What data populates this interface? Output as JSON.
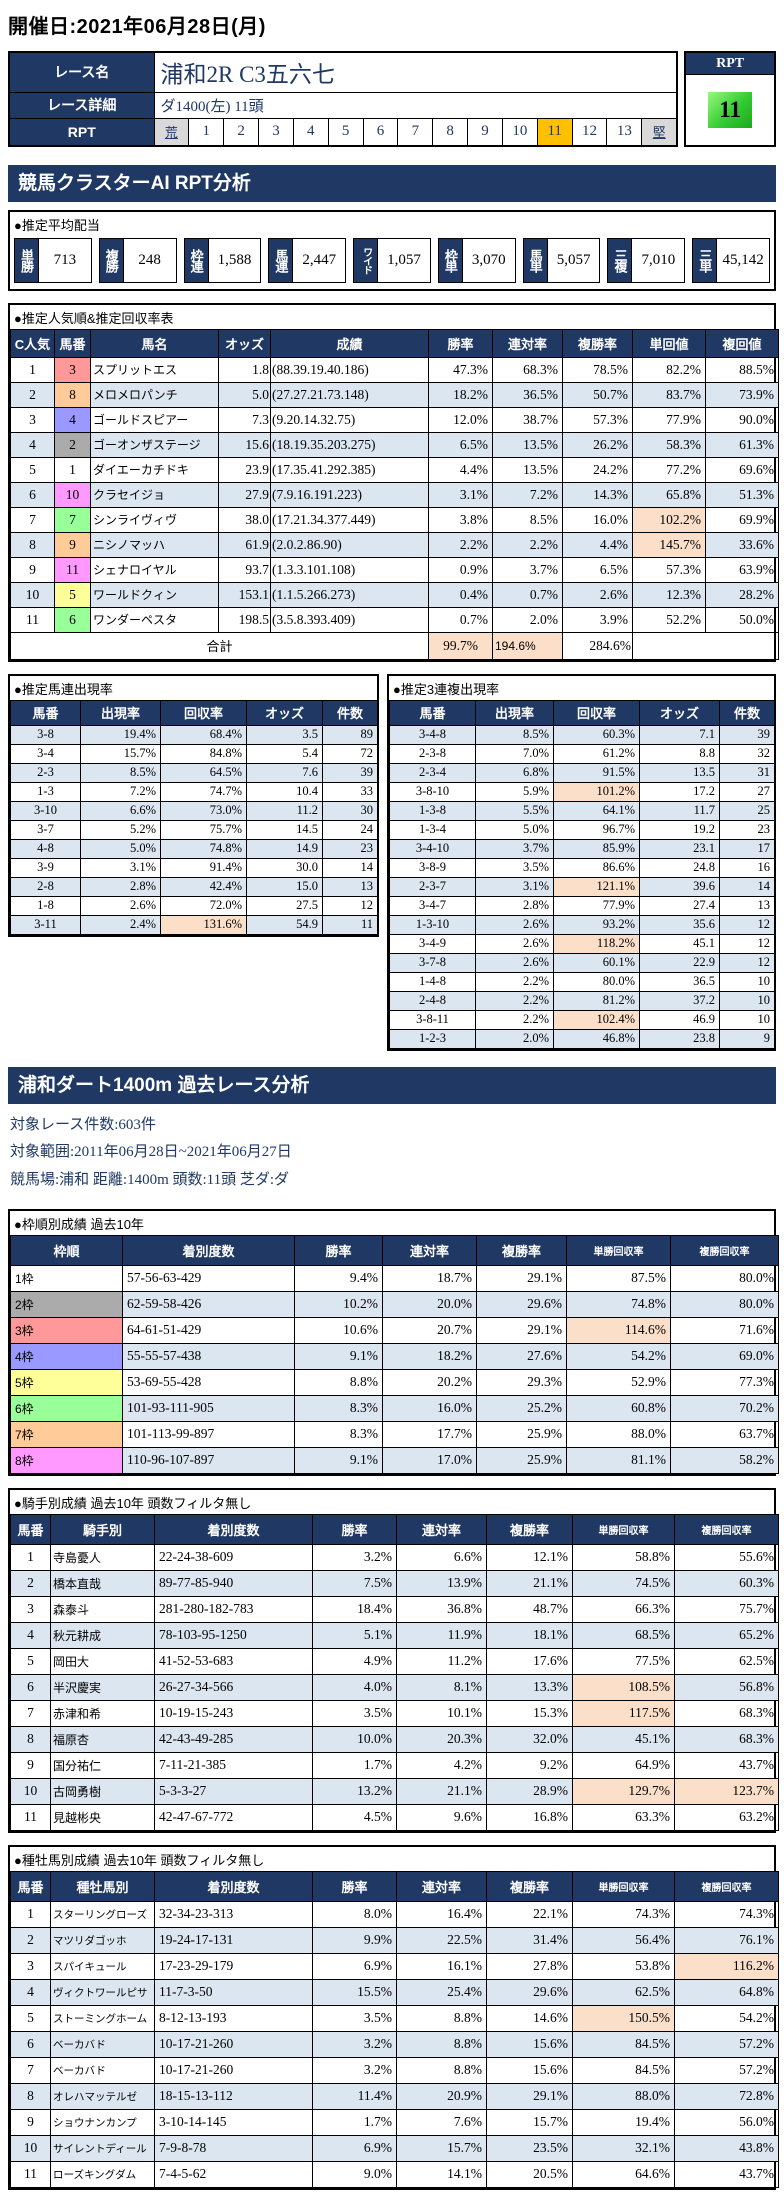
{
  "page": {
    "date_label": "開催日:2021年06月28日(月)"
  },
  "colors": {
    "navy": "#1f3864",
    "stripe": "#dce6f1",
    "highlight": "#fbdfc9",
    "rpt_selected": "#ffc000",
    "rpt_score_green": "#33cc33",
    "scale_end_gray": "#d9d9d9",
    "frame_colors": [
      "#ffffff",
      "#ababab",
      "#ff9999",
      "#9999ff",
      "#ffff99",
      "#99ff99",
      "#ffcc99",
      "#ff99ff"
    ]
  },
  "race": {
    "name_label": "レース名",
    "name": "浦和2R C3五六七",
    "detail_label": "レース詳細",
    "detail": "ダ1400(左)  11頭",
    "rpt_label": "RPT",
    "rpt_scale": [
      "荒",
      "1",
      "2",
      "3",
      "4",
      "5",
      "6",
      "7",
      "8",
      "9",
      "10",
      "11",
      "12",
      "13",
      "堅"
    ],
    "rpt_selected": "11",
    "rpt_box_label": "RPT",
    "rpt_box_value": "11"
  },
  "section1": {
    "title": "競馬クラスターAI RPT分析",
    "payout": {
      "title": "●推定平均配当",
      "items": [
        {
          "label": "単勝",
          "value": "713"
        },
        {
          "label": "複勝",
          "value": "248"
        },
        {
          "label": "枠連",
          "value": "1,588"
        },
        {
          "label": "馬連",
          "value": "2,447"
        },
        {
          "label": "ワイド",
          "value": "1,057"
        },
        {
          "label": "枠単",
          "value": "3,070"
        },
        {
          "label": "馬単",
          "value": "5,057"
        },
        {
          "label": "三複",
          "value": "7,010"
        },
        {
          "label": "三単",
          "value": "45,142"
        }
      ]
    },
    "popularity": {
      "title": "●推定人気順&推定回収率表",
      "headers": [
        "C人気",
        "馬番",
        "馬名",
        "オッズ",
        "成績",
        "勝率",
        "連対率",
        "複勝率",
        "単回値",
        "複回値"
      ],
      "rows": [
        {
          "c": [
            "1",
            "3",
            "スプリットエス",
            "1.8",
            "(88.39.19.40.186)",
            "47.3%",
            "68.3%",
            "78.5%",
            "82.2%",
            "88.5%"
          ],
          "f": 3,
          "hl": []
        },
        {
          "c": [
            "2",
            "8",
            "メロメロパンチ",
            "5.0",
            "(27.27.21.73.148)",
            "18.2%",
            "36.5%",
            "50.7%",
            "83.7%",
            "73.9%"
          ],
          "f": 7,
          "hl": []
        },
        {
          "c": [
            "3",
            "4",
            "ゴールドスピアー",
            "7.3",
            "(9.20.14.32.75)",
            "12.0%",
            "38.7%",
            "57.3%",
            "77.9%",
            "90.0%"
          ],
          "f": 4,
          "hl": []
        },
        {
          "c": [
            "4",
            "2",
            "ゴーオンザステージ",
            "15.6",
            "(18.19.35.203.275)",
            "6.5%",
            "13.5%",
            "26.2%",
            "58.3%",
            "61.3%"
          ],
          "f": 2,
          "hl": []
        },
        {
          "c": [
            "5",
            "1",
            "ダイエーカチドキ",
            "23.9",
            "(17.35.41.292.385)",
            "4.4%",
            "13.5%",
            "24.2%",
            "77.2%",
            "69.6%"
          ],
          "f": 1,
          "hl": []
        },
        {
          "c": [
            "6",
            "10",
            "クラセイジョ",
            "27.9",
            "(7.9.16.191.223)",
            "3.1%",
            "7.2%",
            "14.3%",
            "65.8%",
            "51.3%"
          ],
          "f": 8,
          "hl": []
        },
        {
          "c": [
            "7",
            "7",
            "シンライヴィヴ",
            "38.0",
            "(17.21.34.377.449)",
            "3.8%",
            "8.5%",
            "16.0%",
            "102.2%",
            "69.9%"
          ],
          "f": 6,
          "hl": [
            8
          ]
        },
        {
          "c": [
            "8",
            "9",
            "ニシノマッハ",
            "61.9",
            "(2.0.2.86.90)",
            "2.2%",
            "2.2%",
            "4.4%",
            "145.7%",
            "33.6%"
          ],
          "f": 7,
          "hl": [
            8
          ]
        },
        {
          "c": [
            "9",
            "11",
            "シェナロイヤル",
            "93.7",
            "(1.3.3.101.108)",
            "0.9%",
            "3.7%",
            "6.5%",
            "57.3%",
            "63.9%"
          ],
          "f": 8,
          "hl": []
        },
        {
          "c": [
            "10",
            "5",
            "ワールドクィン",
            "153.1",
            "(1.1.5.266.273)",
            "0.4%",
            "0.7%",
            "2.6%",
            "12.3%",
            "28.2%"
          ],
          "f": 5,
          "hl": []
        },
        {
          "c": [
            "11",
            "6",
            "ワンダーペスタ",
            "198.5",
            "(3.5.8.393.409)",
            "0.7%",
            "2.0%",
            "3.9%",
            "52.2%",
            "50.0%"
          ],
          "f": 6,
          "hl": []
        }
      ],
      "total_label": "合計",
      "total": {
        "win": "99.7%",
        "quinella": "194.6%",
        "show": "284.6%"
      }
    },
    "umaren": {
      "title": "●推定馬連出現率",
      "headers": [
        "馬番",
        "出現率",
        "回収率",
        "オッズ",
        "件数"
      ],
      "rows": [
        {
          "c": [
            "3-8",
            "19.4%",
            "68.4%",
            "3.5",
            "89"
          ],
          "hl": []
        },
        {
          "c": [
            "3-4",
            "15.7%",
            "84.8%",
            "5.4",
            "72"
          ],
          "hl": []
        },
        {
          "c": [
            "2-3",
            "8.5%",
            "64.5%",
            "7.6",
            "39"
          ],
          "hl": []
        },
        {
          "c": [
            "1-3",
            "7.2%",
            "74.7%",
            "10.4",
            "33"
          ],
          "hl": []
        },
        {
          "c": [
            "3-10",
            "6.6%",
            "73.0%",
            "11.2",
            "30"
          ],
          "hl": []
        },
        {
          "c": [
            "3-7",
            "5.2%",
            "75.7%",
            "14.5",
            "24"
          ],
          "hl": []
        },
        {
          "c": [
            "4-8",
            "5.0%",
            "74.8%",
            "14.9",
            "23"
          ],
          "hl": []
        },
        {
          "c": [
            "3-9",
            "3.1%",
            "91.4%",
            "30.0",
            "14"
          ],
          "hl": []
        },
        {
          "c": [
            "2-8",
            "2.8%",
            "42.4%",
            "15.0",
            "13"
          ],
          "hl": []
        },
        {
          "c": [
            "1-8",
            "2.6%",
            "72.0%",
            "27.5",
            "12"
          ],
          "hl": []
        },
        {
          "c": [
            "3-11",
            "2.4%",
            "131.6%",
            "54.9",
            "11"
          ],
          "hl": [
            2
          ]
        }
      ]
    },
    "sanrenpuku": {
      "title": "●推定3連複出現率",
      "headers": [
        "馬番",
        "出現率",
        "回収率",
        "オッズ",
        "件数"
      ],
      "rows": [
        {
          "c": [
            "3-4-8",
            "8.5%",
            "60.3%",
            "7.1",
            "39"
          ],
          "hl": []
        },
        {
          "c": [
            "2-3-8",
            "7.0%",
            "61.2%",
            "8.8",
            "32"
          ],
          "hl": []
        },
        {
          "c": [
            "2-3-4",
            "6.8%",
            "91.5%",
            "13.5",
            "31"
          ],
          "hl": []
        },
        {
          "c": [
            "3-8-10",
            "5.9%",
            "101.2%",
            "17.2",
            "27"
          ],
          "hl": [
            2
          ]
        },
        {
          "c": [
            "1-3-8",
            "5.5%",
            "64.1%",
            "11.7",
            "25"
          ],
          "hl": []
        },
        {
          "c": [
            "1-3-4",
            "5.0%",
            "96.7%",
            "19.2",
            "23"
          ],
          "hl": []
        },
        {
          "c": [
            "3-4-10",
            "3.7%",
            "85.9%",
            "23.1",
            "17"
          ],
          "hl": []
        },
        {
          "c": [
            "3-8-9",
            "3.5%",
            "86.6%",
            "24.8",
            "16"
          ],
          "hl": []
        },
        {
          "c": [
            "2-3-7",
            "3.1%",
            "121.1%",
            "39.6",
            "14"
          ],
          "hl": [
            2
          ]
        },
        {
          "c": [
            "3-4-7",
            "2.8%",
            "77.9%",
            "27.4",
            "13"
          ],
          "hl": []
        },
        {
          "c": [
            "1-3-10",
            "2.6%",
            "93.2%",
            "35.6",
            "12"
          ],
          "hl": []
        },
        {
          "c": [
            "3-4-9",
            "2.6%",
            "118.2%",
            "45.1",
            "12"
          ],
          "hl": [
            2
          ]
        },
        {
          "c": [
            "3-7-8",
            "2.6%",
            "60.1%",
            "22.9",
            "12"
          ],
          "hl": []
        },
        {
          "c": [
            "1-4-8",
            "2.2%",
            "80.0%",
            "36.5",
            "10"
          ],
          "hl": []
        },
        {
          "c": [
            "2-4-8",
            "2.2%",
            "81.2%",
            "37.2",
            "10"
          ],
          "hl": []
        },
        {
          "c": [
            "3-8-11",
            "2.2%",
            "102.4%",
            "46.9",
            "10"
          ],
          "hl": [
            2
          ]
        },
        {
          "c": [
            "1-2-3",
            "2.0%",
            "46.8%",
            "23.8",
            "9"
          ],
          "hl": []
        }
      ]
    }
  },
  "section2": {
    "title": "浦和ダート1400m 過去レース分析",
    "info_lines": [
      "対象レース件数:603件",
      "対象範囲:2011年06月28日~2021年06月27日",
      "競馬場:浦和 距離:1400m 頭数:11頭 芝ダ:ダ"
    ],
    "frame": {
      "title": "●枠順別成績 過去10年",
      "headers": [
        "枠順",
        "着別度数",
        "勝率",
        "連対率",
        "複勝率",
        "単勝回収率",
        "複勝回収率"
      ],
      "rows": [
        {
          "c": [
            "1枠",
            "57-56-63-429",
            "9.4%",
            "18.7%",
            "29.1%",
            "87.5%",
            "80.0%"
          ],
          "f": 1,
          "hl": []
        },
        {
          "c": [
            "2枠",
            "62-59-58-426",
            "10.2%",
            "20.0%",
            "29.6%",
            "74.8%",
            "80.0%"
          ],
          "f": 2,
          "hl": []
        },
        {
          "c": [
            "3枠",
            "64-61-51-429",
            "10.6%",
            "20.7%",
            "29.1%",
            "114.6%",
            "71.6%"
          ],
          "f": 3,
          "hl": [
            5
          ]
        },
        {
          "c": [
            "4枠",
            "55-55-57-438",
            "9.1%",
            "18.2%",
            "27.6%",
            "54.2%",
            "69.0%"
          ],
          "f": 4,
          "hl": []
        },
        {
          "c": [
            "5枠",
            "53-69-55-428",
            "8.8%",
            "20.2%",
            "29.3%",
            "52.9%",
            "77.3%"
          ],
          "f": 5,
          "hl": []
        },
        {
          "c": [
            "6枠",
            "101-93-111-905",
            "8.3%",
            "16.0%",
            "25.2%",
            "60.8%",
            "70.2%"
          ],
          "f": 6,
          "hl": []
        },
        {
          "c": [
            "7枠",
            "101-113-99-897",
            "8.3%",
            "17.7%",
            "25.9%",
            "88.0%",
            "63.7%"
          ],
          "f": 7,
          "hl": []
        },
        {
          "c": [
            "8枠",
            "110-96-107-897",
            "9.1%",
            "17.0%",
            "25.9%",
            "81.1%",
            "58.2%"
          ],
          "f": 8,
          "hl": []
        }
      ]
    },
    "jockey": {
      "title": "●騎手別成績 過去10年 頭数フィルタ無し",
      "headers": [
        "馬番",
        "騎手別",
        "着別度数",
        "勝率",
        "連対率",
        "複勝率",
        "単勝回収率",
        "複勝回収率"
      ],
      "rows": [
        {
          "c": [
            "1",
            "寺島憂人",
            "22-24-38-609",
            "3.2%",
            "6.6%",
            "12.1%",
            "58.8%",
            "55.6%"
          ],
          "hl": []
        },
        {
          "c": [
            "2",
            "橋本直哉",
            "89-77-85-940",
            "7.5%",
            "13.9%",
            "21.1%",
            "74.5%",
            "60.3%"
          ],
          "hl": []
        },
        {
          "c": [
            "3",
            "森泰斗",
            "281-280-182-783",
            "18.4%",
            "36.8%",
            "48.7%",
            "66.3%",
            "75.7%"
          ],
          "hl": []
        },
        {
          "c": [
            "4",
            "秋元耕成",
            "78-103-95-1250",
            "5.1%",
            "11.9%",
            "18.1%",
            "68.5%",
            "65.2%"
          ],
          "hl": []
        },
        {
          "c": [
            "5",
            "岡田大",
            "41-52-53-683",
            "4.9%",
            "11.2%",
            "17.6%",
            "77.5%",
            "62.5%"
          ],
          "hl": []
        },
        {
          "c": [
            "6",
            "半沢慶実",
            "26-27-34-566",
            "4.0%",
            "8.1%",
            "13.3%",
            "108.5%",
            "56.8%"
          ],
          "hl": [
            6
          ]
        },
        {
          "c": [
            "7",
            "赤津和希",
            "10-19-15-243",
            "3.5%",
            "10.1%",
            "15.3%",
            "117.5%",
            "68.3%"
          ],
          "hl": [
            6
          ]
        },
        {
          "c": [
            "8",
            "福原杏",
            "42-43-49-285",
            "10.0%",
            "20.3%",
            "32.0%",
            "45.1%",
            "68.3%"
          ],
          "hl": []
        },
        {
          "c": [
            "9",
            "国分祐仁",
            "7-11-21-385",
            "1.7%",
            "4.2%",
            "9.2%",
            "64.9%",
            "43.7%"
          ],
          "hl": []
        },
        {
          "c": [
            "10",
            "古岡勇樹",
            "5-3-3-27",
            "13.2%",
            "21.1%",
            "28.9%",
            "129.7%",
            "123.7%"
          ],
          "hl": [
            6,
            7
          ]
        },
        {
          "c": [
            "11",
            "見越彬央",
            "42-47-67-772",
            "4.5%",
            "9.6%",
            "16.8%",
            "63.3%",
            "63.2%"
          ],
          "hl": []
        }
      ]
    },
    "sire": {
      "title": "●種牡馬別成績 過去10年 頭数フィルタ無し",
      "headers": [
        "馬番",
        "種牡馬別",
        "着別度数",
        "勝率",
        "連対率",
        "複勝率",
        "単勝回収率",
        "複勝回収率"
      ],
      "rows": [
        {
          "c": [
            "1",
            "スターリングローズ",
            "32-34-23-313",
            "8.0%",
            "16.4%",
            "22.1%",
            "74.3%",
            "74.3%"
          ],
          "hl": []
        },
        {
          "c": [
            "2",
            "マツリダゴッホ",
            "19-24-17-131",
            "9.9%",
            "22.5%",
            "31.4%",
            "56.4%",
            "76.1%"
          ],
          "hl": []
        },
        {
          "c": [
            "3",
            "スパイキュール",
            "17-23-29-179",
            "6.9%",
            "16.1%",
            "27.8%",
            "53.8%",
            "116.2%"
          ],
          "hl": [
            7
          ]
        },
        {
          "c": [
            "4",
            "ヴィクトワールピサ",
            "11-7-3-50",
            "15.5%",
            "25.4%",
            "29.6%",
            "62.5%",
            "64.8%"
          ],
          "hl": []
        },
        {
          "c": [
            "5",
            "ストーミングホーム",
            "8-12-13-193",
            "3.5%",
            "8.8%",
            "14.6%",
            "150.5%",
            "54.2%"
          ],
          "hl": [
            6
          ]
        },
        {
          "c": [
            "6",
            "ベーカバド",
            "10-17-21-260",
            "3.2%",
            "8.8%",
            "15.6%",
            "84.5%",
            "57.2%"
          ],
          "hl": []
        },
        {
          "c": [
            "7",
            "ベーカバド",
            "10-17-21-260",
            "3.2%",
            "8.8%",
            "15.6%",
            "84.5%",
            "57.2%"
          ],
          "hl": []
        },
        {
          "c": [
            "8",
            "オレハマッテルゼ",
            "18-15-13-112",
            "11.4%",
            "20.9%",
            "29.1%",
            "88.0%",
            "72.8%"
          ],
          "hl": []
        },
        {
          "c": [
            "9",
            "ショウナンカンプ",
            "3-10-14-145",
            "1.7%",
            "7.6%",
            "15.7%",
            "19.4%",
            "56.0%"
          ],
          "hl": []
        },
        {
          "c": [
            "10",
            "サイレントディール",
            "7-9-8-78",
            "6.9%",
            "15.7%",
            "23.5%",
            "32.1%",
            "43.8%"
          ],
          "hl": []
        },
        {
          "c": [
            "11",
            "ローズキングダム",
            "7-4-5-62",
            "9.0%",
            "14.1%",
            "20.5%",
            "64.6%",
            "43.7%"
          ],
          "hl": []
        }
      ]
    }
  }
}
